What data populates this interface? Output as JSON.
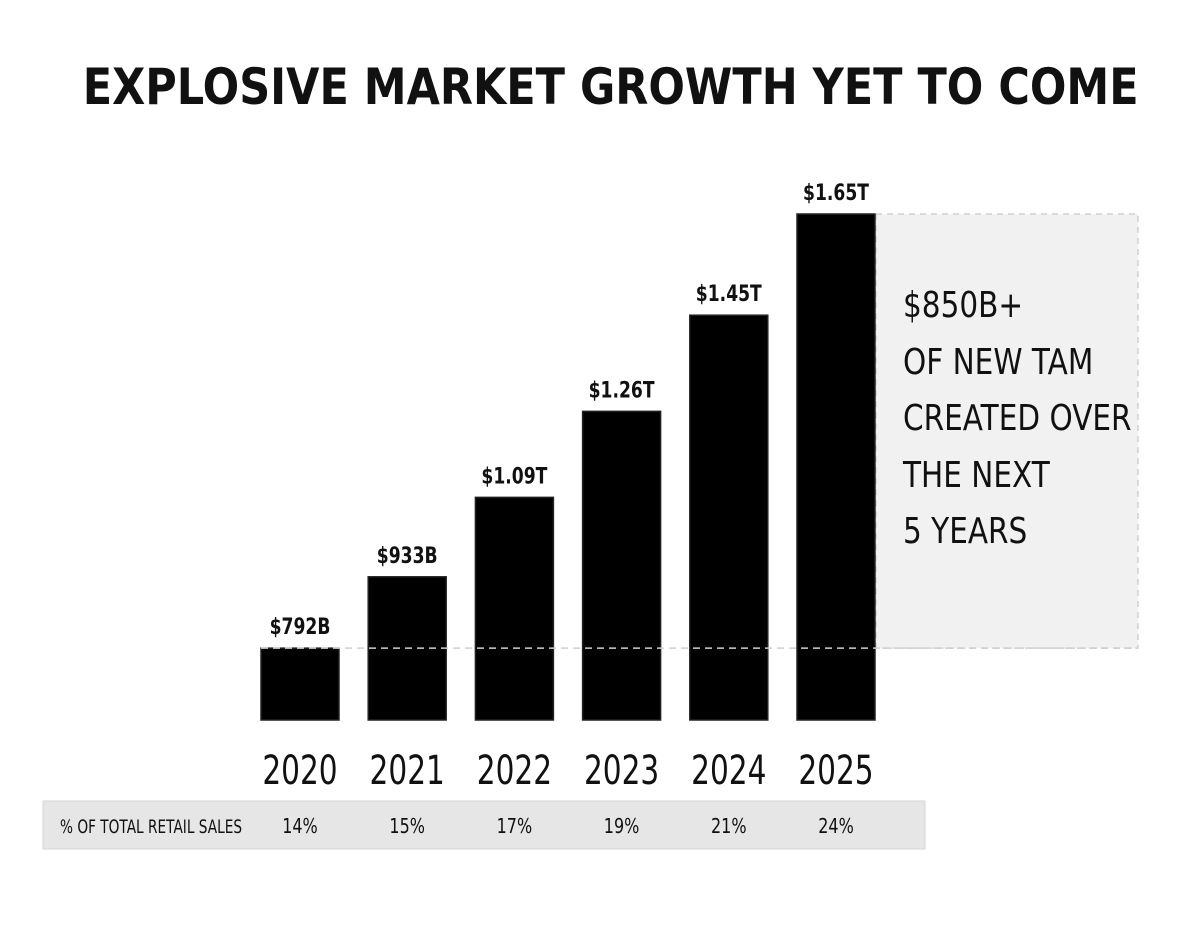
{
  "chart_data": {
    "type": "bar",
    "title": "EXPLOSIVE MARKET GROWTH YET TO COME",
    "categories": [
      "2020",
      "2021",
      "2022",
      "2023",
      "2024",
      "2025"
    ],
    "values": [
      792,
      933,
      1090,
      1260,
      1450,
      1650
    ],
    "value_unit": "$B",
    "data_labels": [
      "$792B",
      "$933B",
      "$1.09T",
      "$1.26T",
      "$1.45T",
      "$1.65T"
    ],
    "ylim": [
      650,
      1650
    ],
    "bar_color": "#000000",
    "highlight": {
      "from_value": 792,
      "to_value": 1650,
      "fill": "#f1f1f1",
      "lines": [
        "$850B+",
        "OF NEW TAM",
        "CREATED OVER",
        "THE NEXT",
        "5 YEARS"
      ]
    },
    "table": {
      "row_label": "% OF TOTAL RETAIL SALES",
      "values": [
        "14%",
        "15%",
        "17%",
        "19%",
        "21%",
        "24%"
      ],
      "fill": "#e6e6e6"
    }
  }
}
